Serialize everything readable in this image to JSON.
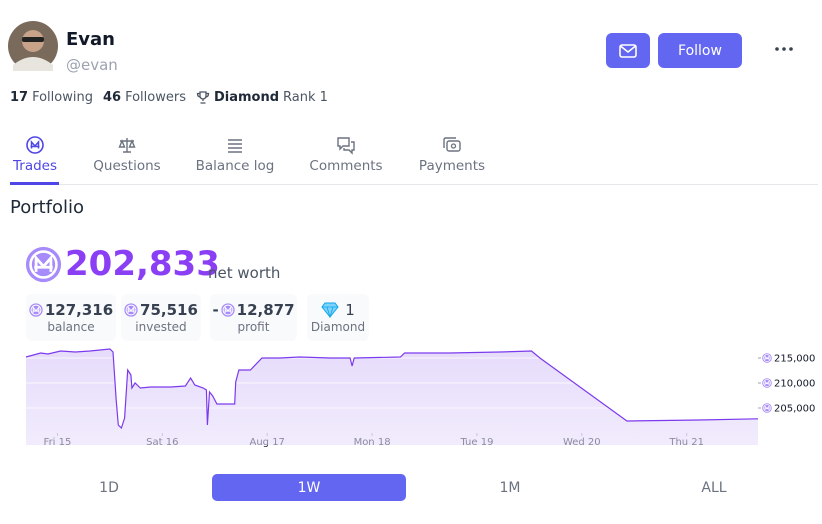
{
  "profile": {
    "name": "Evan",
    "handle": "@evan",
    "following_count": "17",
    "following_label": "Following",
    "followers_count": "46",
    "followers_label": "Followers",
    "rank_tier": "Diamond",
    "rank": "Rank 1"
  },
  "actions": {
    "follow": "Follow"
  },
  "tabs": [
    "Trades",
    "Questions",
    "Balance log",
    "Comments",
    "Payments"
  ],
  "section_title": "Portfolio",
  "net_worth": {
    "value": "202,833",
    "label": "net worth"
  },
  "stats": [
    {
      "value": "127,316",
      "label": "balance"
    },
    {
      "value": "75,516",
      "label": "invested"
    },
    {
      "sign": "-",
      "value": "12,877",
      "label": "profit"
    },
    {
      "value": "1",
      "label": "Diamond"
    }
  ],
  "periods": [
    "1D",
    "1W",
    "1M",
    "ALL"
  ],
  "chart_data": {
    "type": "area",
    "color": "#7c3aed",
    "fill": "#e6dcfb",
    "x": [
      14.7,
      14.84,
      14.91,
      15.03,
      15.17,
      15.31,
      15.5,
      15.53,
      15.56,
      15.58,
      15.61,
      15.64,
      15.67,
      15.7,
      15.71,
      15.74,
      15.79,
      15.89,
      16.08,
      16.22,
      16.27,
      16.31,
      16.39,
      16.42,
      16.43,
      16.45,
      16.48,
      16.52,
      16.65,
      16.69,
      16.7,
      16.73,
      16.84,
      16.95,
      17.12,
      17.31,
      17.6,
      17.79,
      17.81,
      17.83,
      18.27,
      18.31,
      18.74,
      19.22,
      19.52,
      19.6,
      20.43,
      21.12,
      21.68
    ],
    "values": [
      215200,
      216000,
      215800,
      216400,
      216200,
      216400,
      216800,
      216200,
      206600,
      201600,
      201000,
      203000,
      212600,
      211600,
      209000,
      210000,
      209000,
      209200,
      209200,
      209400,
      211000,
      209600,
      209000,
      208600,
      201600,
      208200,
      207400,
      205800,
      205800,
      205800,
      210200,
      212600,
      212600,
      215000,
      215000,
      215200,
      215000,
      215000,
      213400,
      215000,
      215200,
      216000,
      216000,
      216200,
      216400,
      215000,
      202400,
      202600,
      202833
    ],
    "xlim": [
      14.7,
      21.68
    ],
    "ylim": [
      197600,
      217000
    ],
    "xticks": [
      {
        "value": 15,
        "label": "Fri 15"
      },
      {
        "value": 16,
        "label": "Sat 16"
      },
      {
        "value": 17,
        "label": "Aug 17"
      },
      {
        "value": 18,
        "label": "Mon 18"
      },
      {
        "value": 19,
        "label": "Tue 19"
      },
      {
        "value": 20,
        "label": "Wed 20"
      },
      {
        "value": 21,
        "label": "Thu 21"
      }
    ],
    "yticks": [
      {
        "value": 205000,
        "label": "205,000"
      },
      {
        "value": 210000,
        "label": "210,000"
      },
      {
        "value": 215000,
        "label": "215,000"
      }
    ],
    "grid": true
  }
}
